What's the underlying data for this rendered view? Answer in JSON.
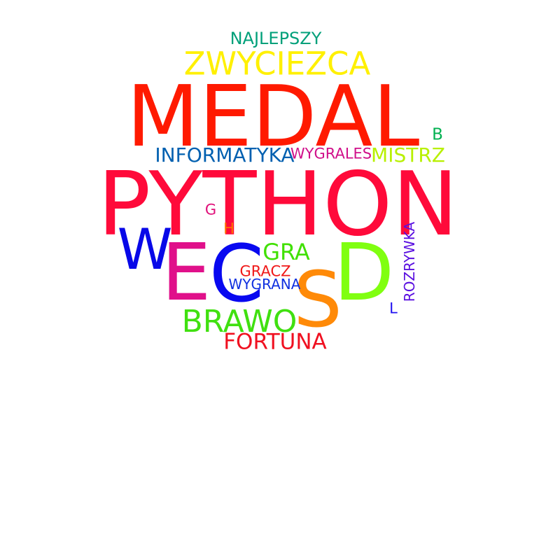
{
  "words": {
    "najlepszy": {
      "text": "NAJLEPSZY",
      "color": "#00A07A"
    },
    "zwyciezca": {
      "text": "ZWYCIEZCA",
      "color": "#FFF000"
    },
    "medal": {
      "text": "MEDAL",
      "color": "#FF1A00"
    },
    "b": {
      "text": "B",
      "color": "#00B050"
    },
    "informatyka": {
      "text": "INFORMATYKA",
      "color": "#0060B0"
    },
    "wygrales": {
      "text": "WYGRALES",
      "color": "#D0108A"
    },
    "mistrz": {
      "text": "MISTRZ",
      "color": "#B8F000"
    },
    "python": {
      "text": "PYTHON",
      "color": "#FF0A3A"
    },
    "g": {
      "text": "G",
      "color": "#E0107A"
    },
    "h": {
      "text": "H",
      "color": "#FF7000"
    },
    "w": {
      "text": "W",
      "color": "#0808E8"
    },
    "e": {
      "text": "E",
      "color": "#E0108A"
    },
    "c": {
      "text": "C",
      "color": "#0808F0"
    },
    "gra": {
      "text": "GRA",
      "color": "#40E000"
    },
    "d": {
      "text": "D",
      "color": "#80FF10"
    },
    "s": {
      "text": "S",
      "color": "#FF8A08"
    },
    "rozrywka": {
      "text": "ROZRYWKA",
      "color": "#5A10E0"
    },
    "gracz": {
      "text": "GRACZ",
      "color": "#F01818"
    },
    "wygrana": {
      "text": "WYGRANA",
      "color": "#1030E0"
    },
    "l": {
      "text": "L",
      "color": "#2010F0"
    },
    "brawo": {
      "text": "BRAWO",
      "color": "#40E010"
    },
    "fortuna": {
      "text": "FORTUNA",
      "color": "#F01020"
    }
  }
}
